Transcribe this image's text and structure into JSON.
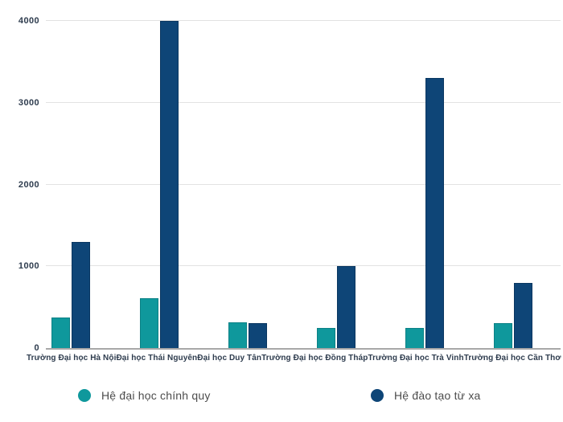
{
  "chart_data": {
    "type": "bar",
    "title": "",
    "xlabel": "",
    "ylabel": "",
    "categories": [
      "Trường Đại học Hà Nội",
      "Đại học Thái Nguyên",
      "Đại học Duy Tân",
      "Trường Đại học Đồng Tháp",
      "Trường Đại học Trà Vinh",
      "Trường Đại học Cần Thơ"
    ],
    "series": [
      {
        "name": "Hệ đại học chính quy",
        "color": "#0f989c",
        "border_color": "#0c8186",
        "values": [
          370,
          610,
          310,
          250,
          250,
          300
        ]
      },
      {
        "name": "Hệ đào tạo từ xa",
        "color": "#0e4577",
        "border_color": "#0a3761",
        "values": [
          1300,
          4000,
          300,
          1000,
          3300,
          800
        ]
      }
    ],
    "yticks": [
      0,
      1000,
      2000,
      3000,
      4000
    ],
    "ytick_labels": [
      "0",
      "1000",
      "2000",
      "3000",
      "4000"
    ],
    "ylim": [
      0,
      4000
    ],
    "grid": true,
    "legend_position": "bottom"
  },
  "colors": {
    "background": "#ffffff",
    "grid": "#e2e2e2",
    "axis": "#a8a8a8",
    "tick_label": "#2e3c4e",
    "category_label": "#2e3c4e",
    "legend_text": "#4c4c4c"
  }
}
